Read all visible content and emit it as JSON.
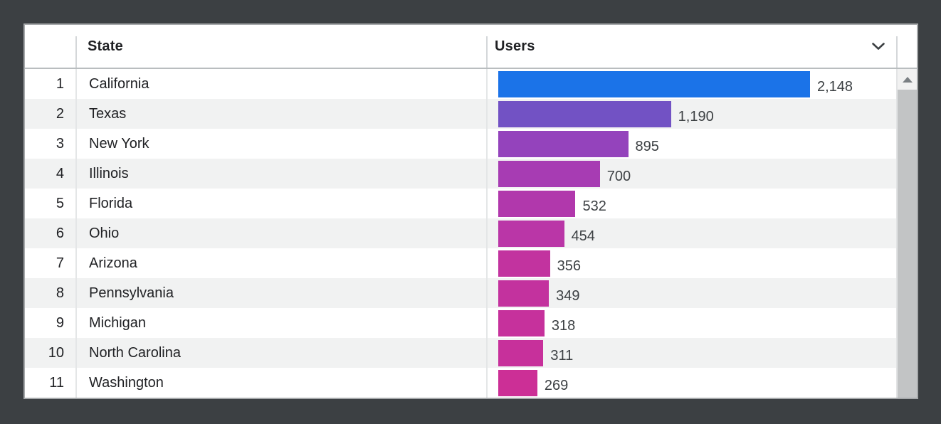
{
  "chart_data": {
    "type": "bar",
    "orientation": "horizontal",
    "title": "",
    "columns": [
      "State",
      "Users"
    ],
    "ranks": [
      "1",
      "2",
      "3",
      "4",
      "5",
      "6",
      "7",
      "8",
      "9",
      "10",
      "11"
    ],
    "categories": [
      "California",
      "Texas",
      "New York",
      "Illinois",
      "Florida",
      "Ohio",
      "Arizona",
      "Pennsylvania",
      "Michigan",
      "North Carolina",
      "Washington"
    ],
    "values": [
      2148,
      1190,
      895,
      700,
      532,
      454,
      356,
      349,
      318,
      311,
      269
    ],
    "value_labels": [
      "2,148",
      "1,190",
      "895",
      "700",
      "532",
      "454",
      "356",
      "349",
      "318",
      "311",
      "269"
    ],
    "bar_colors": [
      "#1b73e8",
      "#7252c4",
      "#9443bc",
      "#a73cb3",
      "#b138ac",
      "#ba36a7",
      "#c2339f",
      "#c3329e",
      "#c6319c",
      "#c7309b",
      "#cc2f96"
    ],
    "max_value": 2148,
    "legend": "none",
    "grid": false,
    "xlabel": "",
    "ylabel": ""
  },
  "icons": {
    "users_sort": "chevron-down",
    "scroll_up": "triangle-up"
  },
  "colors": {
    "page_background": "#3c4043",
    "panel_background": "#ffffff",
    "zebra_row": "#f1f2f2",
    "header_text": "#202124",
    "row_text": "#202124",
    "value_text": "#3c4043",
    "scrollbar_thumb": "#c2c4c5",
    "top_bar_blue": "#1b73e8",
    "bottom_bar_pink": "#cc2f96"
  }
}
